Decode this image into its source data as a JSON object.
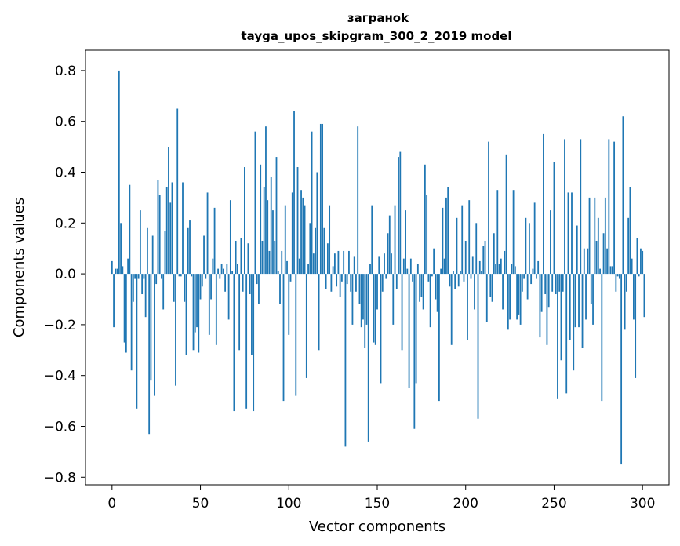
{
  "chart_data": {
    "type": "bar",
    "title": "заграноk",
    "title_lines": [
      "заграноk",
      "tayga_upos_skipgram_300_2_2019 model"
    ],
    "xlabel": "Vector components",
    "ylabel": "Components values",
    "xlim": [
      -15,
      315
    ],
    "ylim": [
      -0.83,
      0.88
    ],
    "xticks": [
      0,
      50,
      100,
      150,
      200,
      250,
      300
    ],
    "yticks": [
      -0.8,
      -0.6,
      -0.4,
      -0.2,
      0.0,
      0.2,
      0.4,
      0.6,
      0.8
    ],
    "ytick_labels": [
      "−0.8",
      "−0.6",
      "−0.4",
      "−0.2",
      "0.0",
      "0.2",
      "0.4",
      "0.6",
      "0.8"
    ],
    "bar_color": "#1f77b4",
    "grid": false,
    "series": [
      {
        "name": "заграноk",
        "x_start": 0,
        "values": [
          0.05,
          -0.21,
          0.02,
          0.02,
          0.8,
          0.2,
          0.03,
          -0.27,
          -0.31,
          0.06,
          0.35,
          -0.38,
          -0.11,
          -0.02,
          -0.53,
          -0.02,
          0.25,
          -0.08,
          -0.02,
          -0.17,
          0.18,
          -0.63,
          -0.42,
          0.15,
          -0.48,
          -0.04,
          0.37,
          0.31,
          -0.02,
          -0.14,
          0.17,
          0.34,
          0.5,
          0.28,
          0.36,
          -0.11,
          -0.44,
          0.65,
          -0.01,
          -0.01,
          0.36,
          -0.11,
          -0.32,
          0.18,
          0.21,
          -0.01,
          -0.3,
          -0.23,
          -0.21,
          -0.31,
          -0.1,
          -0.05,
          0.15,
          -0.02,
          0.32,
          -0.24,
          -0.1,
          0.06,
          0.26,
          -0.28,
          0.02,
          -0.02,
          0.04,
          0.02,
          -0.07,
          0.04,
          -0.18,
          0.29,
          0.01,
          -0.54,
          0.13,
          0.04,
          -0.3,
          0.14,
          -0.07,
          0.42,
          -0.53,
          0.12,
          -0.08,
          -0.32,
          -0.54,
          0.56,
          -0.04,
          -0.12,
          0.43,
          0.13,
          0.34,
          0.58,
          0.29,
          0.09,
          0.38,
          0.25,
          0.13,
          0.46,
          0.01,
          -0.12,
          0.09,
          -0.5,
          0.27,
          0.05,
          -0.24,
          -0.03,
          0.32,
          0.64,
          -0.48,
          0.42,
          0.06,
          0.33,
          0.3,
          0.27,
          -0.41,
          0.04,
          0.2,
          0.56,
          0.08,
          0.18,
          0.4,
          -0.3,
          0.59,
          0.59,
          0.18,
          -0.06,
          0.12,
          0.27,
          -0.07,
          0.03,
          0.08,
          -0.05,
          0.09,
          -0.09,
          -0.03,
          0.09,
          -0.68,
          -0.04,
          0.09,
          -0.07,
          -0.2,
          0.07,
          -0.07,
          0.58,
          -0.12,
          -0.21,
          -0.18,
          -0.29,
          -0.2,
          -0.66,
          0.04,
          0.27,
          -0.27,
          -0.28,
          -0.14,
          0.07,
          -0.43,
          -0.07,
          0.08,
          -0.02,
          0.16,
          0.23,
          0.08,
          -0.2,
          0.27,
          -0.06,
          0.46,
          0.48,
          -0.3,
          0.06,
          0.25,
          0.02,
          -0.45,
          0.06,
          -0.03,
          -0.61,
          -0.43,
          0.04,
          -0.11,
          -0.09,
          -0.14,
          0.43,
          0.31,
          -0.03,
          -0.21,
          -0.01,
          0.1,
          -0.1,
          -0.15,
          -0.5,
          0.02,
          0.26,
          0.06,
          0.3,
          0.34,
          -0.05,
          -0.28,
          0.01,
          -0.06,
          0.22,
          -0.05,
          0.01,
          0.27,
          -0.03,
          0.13,
          -0.26,
          0.29,
          -0.02,
          0.07,
          -0.14,
          0.2,
          -0.57,
          0.05,
          0.01,
          0.11,
          0.13,
          -0.19,
          0.52,
          -0.09,
          -0.11,
          0.16,
          0.04,
          0.33,
          0.04,
          0.06,
          -0.14,
          0.09,
          0.47,
          -0.22,
          -0.18,
          0.04,
          0.33,
          0.03,
          -0.18,
          -0.16,
          -0.2,
          -0.07,
          -0.02,
          0.22,
          -0.1,
          0.2,
          -0.04,
          0.02,
          0.28,
          -0.02,
          0.05,
          -0.25,
          -0.15,
          0.55,
          -0.08,
          -0.28,
          -0.13,
          0.25,
          -0.07,
          0.44,
          -0.08,
          -0.49,
          -0.07,
          -0.34,
          -0.07,
          0.53,
          -0.47,
          0.32,
          -0.26,
          0.32,
          -0.38,
          -0.21,
          0.19,
          -0.21,
          0.53,
          -0.29,
          0.1,
          -0.18,
          0.1,
          0.3,
          -0.12,
          -0.2,
          0.3,
          0.13,
          0.22,
          0.02,
          -0.5,
          0.16,
          0.3,
          0.1,
          0.53,
          0.03,
          0.03,
          0.52,
          -0.07,
          -0.01,
          -0.02,
          -0.75,
          0.62,
          -0.22,
          -0.07,
          0.22,
          0.34,
          0.06,
          -0.18,
          -0.41,
          0.14,
          -0.01,
          0.1,
          0.09,
          -0.17
        ]
      }
    ]
  }
}
